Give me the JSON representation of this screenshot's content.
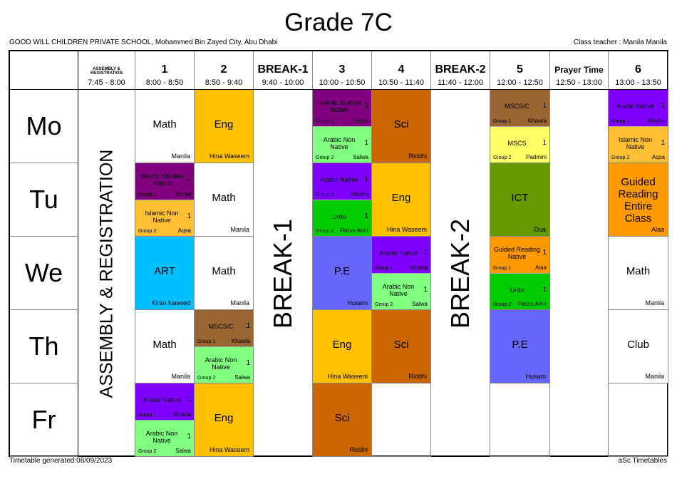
{
  "title": "Grade 7C",
  "school": "GOOD WILL CHILDREN PRIVATE SCHOOL, Mohammed Bin Zayed City, Abu Dhabi",
  "class_teacher": "Class teacher : Manila Manila",
  "footer": {
    "generated": "Timetable generated:08/09/2023",
    "brand": "aSc Timetables"
  },
  "columns": [
    {
      "label": "ASSEMBLY & REGISTRATION",
      "time": "7:45 - 8:00",
      "kind": "fixed",
      "vertical": "ASSEMBLY & REGISTRATION"
    },
    {
      "label": "1",
      "time": "8:00 - 8:50",
      "kind": "period"
    },
    {
      "label": "2",
      "time": "8:50 - 9:40",
      "kind": "period"
    },
    {
      "label": "BREAK-1",
      "time": "9:40 - 10:00",
      "kind": "fixed",
      "vertical": "BREAK-1"
    },
    {
      "label": "3",
      "time": "10:00 - 10:50",
      "kind": "period"
    },
    {
      "label": "4",
      "time": "10:50 - 11:40",
      "kind": "period"
    },
    {
      "label": "BREAK-2",
      "time": "11:40 - 12:00",
      "kind": "fixed",
      "vertical": "BREAK-2"
    },
    {
      "label": "5",
      "time": "12:00 - 12:50",
      "kind": "period"
    },
    {
      "label": "Prayer Time",
      "time": "12:50 - 13:00",
      "kind": "blank"
    },
    {
      "label": "6",
      "time": "13:00 - 13:50",
      "kind": "period"
    }
  ],
  "colors": {
    "Math": "#FFFFFF",
    "Eng": "#FFC000",
    "Sci": "#CC6600",
    "Islamic Studies Native": "#800080",
    "Arabic Native": "#8000FF",
    "Arabic Non Native": "#80FF80",
    "Islamic Non Native": "#FFBF33",
    "Urdu": "#00CC00",
    "P.E": "#6666FF",
    "ART": "#00BFFF",
    "MSCS/C": "#996633",
    "MSCS": "#FFFF66",
    "ICT": "#669900",
    "Guided Reading Native": "#FF9900",
    "Guided Reading Entire Class": "#FF9900",
    "Club": "#FFFFFF"
  },
  "days": [
    {
      "name": "Mo",
      "periods": [
        {
          "subject": "Math",
          "teacher": "Manila"
        },
        {
          "subject": "Eng",
          "teacher": "Hina Waseem"
        },
        {
          "split": [
            {
              "subject": "Islamic Studies Native",
              "count": "1",
              "group": "Group 1",
              "teacher": "Esraa"
            },
            {
              "subject": "Arabic Non Native",
              "count": "1",
              "group": "Group 2",
              "teacher": "Salwa"
            }
          ]
        },
        {
          "subject": "Sci",
          "teacher": "Riddhi"
        },
        {
          "split": [
            {
              "subject": "MSCS/C",
              "count": "1",
              "group": "Group 1",
              "teacher": "Khawla"
            },
            {
              "subject": "MSCS",
              "count": "1",
              "group": "Group 2",
              "teacher": "Padmini"
            }
          ]
        },
        {
          "split": [
            {
              "subject": "Arabic Native",
              "count": "1",
              "group": "Group 1",
              "teacher": "Wusha"
            },
            {
              "subject": "Islamic Non Native",
              "count": "1",
              "group": "Group 2",
              "teacher": "Aqsa"
            }
          ]
        }
      ]
    },
    {
      "name": "Tu",
      "periods": [
        {
          "split": [
            {
              "subject": "Islamic Studies Native",
              "count": "1",
              "group": "Group 1",
              "teacher": "Esraa"
            },
            {
              "subject": "Islamic Non Native",
              "count": "1",
              "group": "Group 2",
              "teacher": "Aqsa"
            }
          ]
        },
        {
          "subject": "Math",
          "teacher": "Manila"
        },
        {
          "split": [
            {
              "subject": "Arabic Native",
              "count": "1",
              "group": "Group 1",
              "teacher": "Wusha"
            },
            {
              "subject": "Urdu",
              "count": "1",
              "group": "Group 2",
              "teacher": "Firdos Amir"
            }
          ]
        },
        {
          "subject": "Eng",
          "teacher": "Hina Waseem"
        },
        {
          "subject": "ICT",
          "teacher": "Dua"
        },
        {
          "subject": "Guided Reading Entire Class",
          "teacher": "Alaa"
        }
      ]
    },
    {
      "name": "We",
      "periods": [
        {
          "subject": "ART",
          "teacher": "Kiran Naveed"
        },
        {
          "subject": "Math",
          "teacher": "Manila"
        },
        {
          "subject": "P.E",
          "teacher": "Husam"
        },
        {
          "split": [
            {
              "subject": "Arabic Native",
              "count": "1",
              "group": "Group 1",
              "teacher": "Wusha"
            },
            {
              "subject": "Arabic Non Native",
              "count": "1",
              "group": "Group 2",
              "teacher": "Salwa"
            }
          ]
        },
        {
          "split": [
            {
              "subject": "Guided Reading Native",
              "count": "1",
              "group": "Group 1",
              "teacher": "Alaa"
            },
            {
              "subject": "Urdu",
              "count": "1",
              "group": "Group 2",
              "teacher": "Firdos Amir"
            }
          ]
        },
        {
          "subject": "Math",
          "teacher": "Manila"
        }
      ]
    },
    {
      "name": "Th",
      "periods": [
        {
          "subject": "Math",
          "teacher": "Manila"
        },
        {
          "split": [
            {
              "subject": "MSCS/C",
              "count": "1",
              "group": "Group 1",
              "teacher": "Khawla"
            },
            {
              "subject": "Arabic Non Native",
              "count": "1",
              "group": "Group 2",
              "teacher": "Salwa"
            }
          ]
        },
        {
          "subject": "Eng",
          "teacher": "Hina Waseem"
        },
        {
          "subject": "Sci",
          "teacher": "Riddhi"
        },
        {
          "subject": "P.E",
          "teacher": "Husam"
        },
        {
          "subject": "Club",
          "teacher": "Manila"
        }
      ]
    },
    {
      "name": "Fr",
      "periods": [
        {
          "split": [
            {
              "subject": "Arabic Native",
              "count": "1",
              "group": "Group 1",
              "teacher": "Wusha"
            },
            {
              "subject": "Arabic Non Native",
              "count": "1",
              "group": "Group 2",
              "teacher": "Salwa"
            }
          ]
        },
        {
          "subject": "Eng",
          "teacher": "Hina Waseem"
        },
        {
          "subject": "Sci",
          "teacher": "Riddhi"
        },
        null,
        null,
        null
      ]
    }
  ]
}
